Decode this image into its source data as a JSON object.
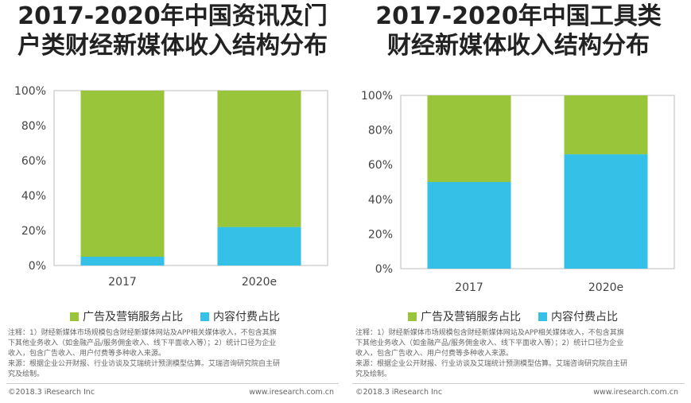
{
  "charts": [
    {
      "title_lines": [
        "2017-2020年中国资讯及门",
        "户类财经新媒体收入结构分布"
      ],
      "legend": [
        {
          "label": "广告及营销服务占比",
          "color": "#99c53a"
        },
        {
          "label": "内容付费占比",
          "color": "#35c0e8"
        }
      ],
      "notes": [
        "注释：1）财经新媒体市场规模包含财经新媒体网站及APP相关媒体收入，不包含其旗",
        "下其他业务收入（如金融产品/服务佣金收入、线下平面收入等）；2）统计口径为企业",
        "收入，包含广告收入、用户付费等多种收入来源。",
        "来源：根据企业公开财报、行业访谈及艾瑞统计预测模型估算。艾瑞咨询研究院自主研",
        "究及绘制。"
      ],
      "footer_left": "©2018.3 iResearch Inc",
      "footer_right": "www.iresearch.com.cn"
    },
    {
      "title_lines": [
        "2017-2020年中国工具类",
        "财经新媒体收入结构分布"
      ],
      "legend": [
        {
          "label": "广告及营销服务占比",
          "color": "#99c53a"
        },
        {
          "label": "内容付费占比",
          "color": "#35c0e8"
        }
      ],
      "notes": [
        "注释：1）财经新媒体市场规模包含财经新媒体网站及APP相关媒体收入，不包含其旗",
        "下其他业务收入（如金融产品/服务佣金收入、线下平面收入等）；2）统计口径为企业",
        "收入，包含广告收入、用户付费等多种收入来源。",
        "来源：根据企业公开财报、行业访谈及艾瑞统计预测模型估算。艾瑞咨询研究院自主研",
        "究及绘制。"
      ],
      "footer_left": "©2018.3 iResearch Inc",
      "footer_right": "www.iresearch.com.cn"
    }
  ],
  "chart_data": [
    {
      "type": "bar",
      "stacked": true,
      "title": "2017-2020年中国资讯及门户类财经新媒体收入结构分布",
      "categories": [
        "2017",
        "2020e"
      ],
      "series": [
        {
          "name": "内容付费占比",
          "values": [
            5,
            22
          ],
          "color": "#35c0e8"
        },
        {
          "name": "广告及营销服务占比",
          "values": [
            95,
            78
          ],
          "color": "#99c53a"
        }
      ],
      "ylim": [
        0,
        100
      ],
      "yticks": [
        "0%",
        "20%",
        "40%",
        "60%",
        "80%",
        "100%"
      ]
    },
    {
      "type": "bar",
      "stacked": true,
      "title": "2017-2020年中国工具类财经新媒体收入结构分布",
      "categories": [
        "2017",
        "2020e"
      ],
      "series": [
        {
          "name": "内容付费占比",
          "values": [
            50,
            66
          ],
          "color": "#35c0e8"
        },
        {
          "name": "广告及营销服务占比",
          "values": [
            50,
            34
          ],
          "color": "#99c53a"
        }
      ],
      "ylim": [
        0,
        100
      ],
      "yticks": [
        "0%",
        "20%",
        "40%",
        "60%",
        "80%",
        "100%"
      ]
    }
  ]
}
